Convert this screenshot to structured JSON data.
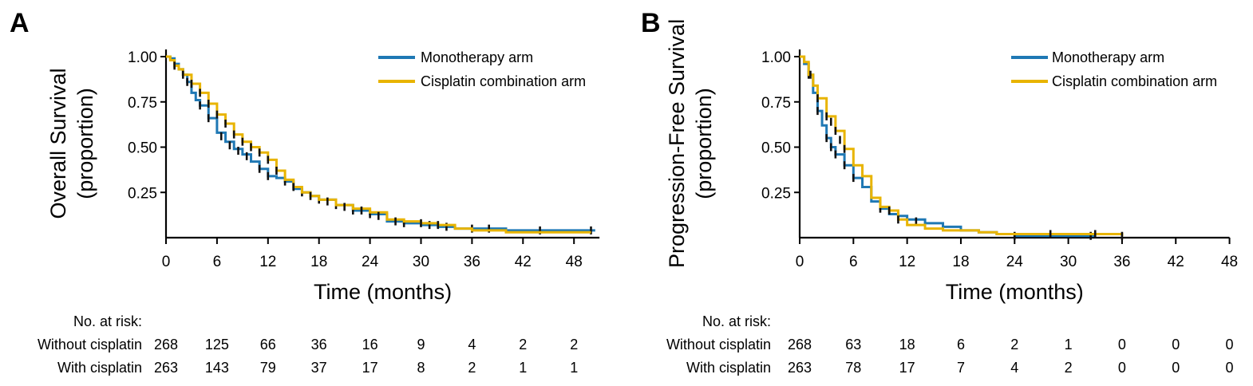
{
  "panels": [
    {
      "letter": "A"
    },
    {
      "letter": "B"
    }
  ],
  "chart_data": [
    {
      "type": "line",
      "subtype": "kaplan-meier",
      "ylabel": "Overall Survival\n(proportion)",
      "xlabel": "Time (months)",
      "xlim": [
        0,
        51
      ],
      "ylim": [
        0,
        1.0
      ],
      "xticks": [
        0,
        6,
        12,
        18,
        24,
        30,
        36,
        42,
        48
      ],
      "yticks": [
        0.25,
        0.5,
        0.75,
        1.0
      ],
      "ytick_labels": [
        "0.25",
        "0.50",
        "0.75",
        "1.00"
      ],
      "legend_position": "top-right",
      "series": [
        {
          "name": "Monotherapy arm",
          "color": "#1f78b4",
          "points": [
            [
              0,
              1.0
            ],
            [
              0.5,
              0.99
            ],
            [
              1,
              0.96
            ],
            [
              1.5,
              0.93
            ],
            [
              2,
              0.9
            ],
            [
              2.5,
              0.86
            ],
            [
              3,
              0.8
            ],
            [
              3.5,
              0.76
            ],
            [
              4,
              0.73
            ],
            [
              5,
              0.66
            ],
            [
              6,
              0.58
            ],
            [
              7,
              0.53
            ],
            [
              8,
              0.49
            ],
            [
              9,
              0.46
            ],
            [
              10,
              0.42
            ],
            [
              11,
              0.38
            ],
            [
              12,
              0.34
            ],
            [
              13,
              0.33
            ],
            [
              14,
              0.31
            ],
            [
              15,
              0.27
            ],
            [
              16,
              0.25
            ],
            [
              17,
              0.23
            ],
            [
              18,
              0.21
            ],
            [
              20,
              0.18
            ],
            [
              22,
              0.15
            ],
            [
              24,
              0.13
            ],
            [
              26,
              0.09
            ],
            [
              28,
              0.08
            ],
            [
              30,
              0.07
            ],
            [
              32,
              0.06
            ],
            [
              34,
              0.05
            ],
            [
              36,
              0.05
            ],
            [
              40,
              0.04
            ],
            [
              44,
              0.04
            ],
            [
              48,
              0.04
            ],
            [
              50.5,
              0.04
            ]
          ],
          "censor_marks": [
            [
              1,
              0.96
            ],
            [
              2.5,
              0.86
            ],
            [
              4,
              0.73
            ],
            [
              5,
              0.66
            ],
            [
              6.5,
              0.56
            ],
            [
              7.5,
              0.51
            ],
            [
              8.5,
              0.48
            ],
            [
              9.5,
              0.45
            ],
            [
              11,
              0.38
            ],
            [
              12,
              0.34
            ],
            [
              14,
              0.31
            ],
            [
              16,
              0.25
            ],
            [
              18,
              0.21
            ],
            [
              20,
              0.18
            ],
            [
              22,
              0.15
            ],
            [
              24,
              0.13
            ],
            [
              28,
              0.08
            ],
            [
              31,
              0.07
            ],
            [
              33,
              0.06
            ],
            [
              36,
              0.05
            ],
            [
              38,
              0.05
            ],
            [
              44,
              0.04
            ],
            [
              50,
              0.04
            ]
          ]
        },
        {
          "name": "Cisplatin combination arm",
          "color": "#e8b400",
          "points": [
            [
              0,
              1.0
            ],
            [
              0.5,
              0.98
            ],
            [
              1,
              0.95
            ],
            [
              1.5,
              0.93
            ],
            [
              2,
              0.9
            ],
            [
              3,
              0.85
            ],
            [
              4,
              0.8
            ],
            [
              5,
              0.74
            ],
            [
              6,
              0.68
            ],
            [
              7,
              0.63
            ],
            [
              8,
              0.57
            ],
            [
              9,
              0.53
            ],
            [
              10,
              0.5
            ],
            [
              11,
              0.47
            ],
            [
              12,
              0.43
            ],
            [
              13,
              0.37
            ],
            [
              14,
              0.32
            ],
            [
              15,
              0.28
            ],
            [
              16,
              0.25
            ],
            [
              17,
              0.23
            ],
            [
              18,
              0.21
            ],
            [
              20,
              0.18
            ],
            [
              22,
              0.16
            ],
            [
              24,
              0.14
            ],
            [
              26,
              0.1
            ],
            [
              28,
              0.09
            ],
            [
              30,
              0.08
            ],
            [
              32,
              0.07
            ],
            [
              34,
              0.05
            ],
            [
              36,
              0.04
            ],
            [
              40,
              0.03
            ],
            [
              44,
              0.03
            ],
            [
              48,
              0.03
            ],
            [
              50,
              0.03
            ]
          ],
          "censor_marks": [
            [
              1,
              0.95
            ],
            [
              2,
              0.9
            ],
            [
              3,
              0.85
            ],
            [
              4,
              0.8
            ],
            [
              5,
              0.74
            ],
            [
              6,
              0.68
            ],
            [
              7,
              0.63
            ],
            [
              8,
              0.57
            ],
            [
              9,
              0.53
            ],
            [
              10,
              0.5
            ],
            [
              11,
              0.47
            ],
            [
              12,
              0.43
            ],
            [
              13,
              0.37
            ],
            [
              15,
              0.28
            ],
            [
              17,
              0.23
            ],
            [
              19,
              0.2
            ],
            [
              21,
              0.17
            ],
            [
              23,
              0.15
            ],
            [
              25,
              0.12
            ],
            [
              27,
              0.09
            ],
            [
              30,
              0.08
            ],
            [
              32,
              0.07
            ]
          ]
        }
      ],
      "risk_table": {
        "header": "No. at risk:",
        "rows": [
          {
            "label": "Without cisplatin",
            "values": [
              "268",
              "125",
              "66",
              "36",
              "16",
              "9",
              "4",
              "2",
              "2"
            ]
          },
          {
            "label": "With cisplatin",
            "values": [
              "263",
              "143",
              "79",
              "37",
              "17",
              "8",
              "2",
              "1",
              "1"
            ]
          }
        ]
      }
    },
    {
      "type": "line",
      "subtype": "kaplan-meier",
      "ylabel": "Progression-Free Survival\n(proportion)",
      "xlabel": "Time (months)",
      "xlim": [
        0,
        48
      ],
      "ylim": [
        0,
        1.0
      ],
      "xticks": [
        0,
        6,
        12,
        18,
        24,
        30,
        36,
        42,
        48
      ],
      "yticks": [
        0.25,
        0.5,
        0.75,
        1.0
      ],
      "ytick_labels": [
        "0.25",
        "0.50",
        "0.75",
        "1.00"
      ],
      "legend_position": "top-right",
      "series": [
        {
          "name": "Monotherapy arm",
          "color": "#1f78b4",
          "points": [
            [
              0,
              1.0
            ],
            [
              0.5,
              0.96
            ],
            [
              1,
              0.9
            ],
            [
              1.5,
              0.8
            ],
            [
              2,
              0.7
            ],
            [
              2.5,
              0.62
            ],
            [
              3,
              0.55
            ],
            [
              3.5,
              0.5
            ],
            [
              4,
              0.46
            ],
            [
              5,
              0.4
            ],
            [
              6,
              0.33
            ],
            [
              7,
              0.28
            ],
            [
              8,
              0.2
            ],
            [
              9,
              0.16
            ],
            [
              10,
              0.13
            ],
            [
              11,
              0.12
            ],
            [
              12,
              0.1
            ],
            [
              14,
              0.08
            ],
            [
              16,
              0.06
            ],
            [
              18,
              0.04
            ],
            [
              20,
              0.03
            ],
            [
              22,
              0.02
            ],
            [
              24,
              0.01
            ],
            [
              26,
              0.01
            ],
            [
              30,
              0.01
            ],
            [
              33,
              0.01
            ]
          ],
          "censor_marks": [
            [
              1,
              0.9
            ],
            [
              2,
              0.7
            ],
            [
              3,
              0.55
            ],
            [
              3.5,
              0.5
            ],
            [
              4,
              0.46
            ],
            [
              5,
              0.4
            ],
            [
              6,
              0.33
            ],
            [
              9,
              0.16
            ],
            [
              11,
              0.12
            ],
            [
              13,
              0.09
            ],
            [
              24,
              0.01
            ],
            [
              32.5,
              0.01
            ]
          ]
        },
        {
          "name": "Cisplatin combination arm",
          "color": "#e8b400",
          "points": [
            [
              0,
              1.0
            ],
            [
              0.5,
              0.97
            ],
            [
              1,
              0.9
            ],
            [
              1.5,
              0.84
            ],
            [
              2,
              0.77
            ],
            [
              3,
              0.67
            ],
            [
              4,
              0.59
            ],
            [
              5,
              0.49
            ],
            [
              6,
              0.4
            ],
            [
              7,
              0.34
            ],
            [
              8,
              0.22
            ],
            [
              9,
              0.17
            ],
            [
              10,
              0.15
            ],
            [
              11,
              0.1
            ],
            [
              12,
              0.07
            ],
            [
              14,
              0.05
            ],
            [
              16,
              0.04
            ],
            [
              18,
              0.04
            ],
            [
              20,
              0.03
            ],
            [
              22,
              0.02
            ],
            [
              24,
              0.02
            ],
            [
              28,
              0.02
            ],
            [
              32,
              0.02
            ],
            [
              36,
              0.01
            ]
          ],
          "censor_marks": [
            [
              1.2,
              0.9
            ],
            [
              2,
              0.77
            ],
            [
              3,
              0.67
            ],
            [
              3.5,
              0.64
            ],
            [
              4,
              0.59
            ],
            [
              4.5,
              0.54
            ],
            [
              5,
              0.49
            ],
            [
              10,
              0.15
            ],
            [
              11,
              0.1
            ],
            [
              28,
              0.02
            ],
            [
              33,
              0.02
            ],
            [
              36,
              0.01
            ]
          ]
        }
      ],
      "risk_table": {
        "header": "No. at risk:",
        "rows": [
          {
            "label": "Without cisplatin",
            "values": [
              "268",
              "63",
              "18",
              "6",
              "2",
              "1",
              "0",
              "0",
              "0"
            ]
          },
          {
            "label": "With cisplatin",
            "values": [
              "263",
              "78",
              "17",
              "7",
              "4",
              "2",
              "0",
              "0",
              "0"
            ]
          }
        ]
      }
    }
  ]
}
